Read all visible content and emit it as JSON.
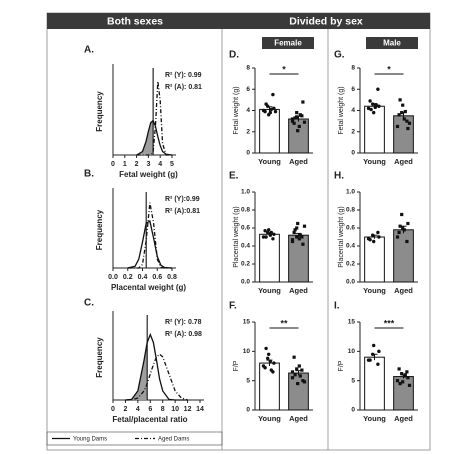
{
  "header": {
    "left": "Both sexes",
    "right": "Divided by sex"
  },
  "groups": {
    "female": "Female",
    "male": "Male"
  },
  "chart_data": [
    {
      "type": "line",
      "panel": "A.",
      "xlabel": "Fetal weight (g)",
      "ylabel": "Frequency",
      "annotations": [
        "R² (Y): 0.99",
        "R² (A): 0.81"
      ],
      "x": [
        2.0,
        2.5,
        2.8,
        3.0,
        3.2,
        3.4,
        3.6,
        3.8,
        4.0,
        4.2,
        4.5,
        5.0
      ],
      "series": [
        {
          "name": "Young Dams",
          "color": "#111111",
          "dash": "solid",
          "fill": "#9e9e9e",
          "values": [
            0.0,
            1.0,
            3.9,
            6.8,
            9.3,
            9.9,
            8.2,
            5.3,
            2.7,
            1.0,
            0.2,
            0.0
          ]
        },
        {
          "name": "Aged Dams",
          "color": "#111111",
          "dash": "dashdot",
          "values": [
            0.0,
            0.0,
            0.0,
            0.0,
            0.0,
            1.0,
            8.4,
            21.2,
            15.6,
            3.3,
            0.0,
            0.0
          ]
        }
      ],
      "vline": 3.4,
      "xlim": [
        0,
        5
      ],
      "xticks": [
        0,
        1,
        2,
        3,
        4,
        5
      ],
      "ylim": [
        0,
        25
      ]
    },
    {
      "type": "line",
      "panel": "B.",
      "xlabel": "Placental weight (g)",
      "ylabel": "Frequency",
      "annotations": [
        "R² (Y):0.99",
        "R² (A):0.81"
      ],
      "x": [
        0.2,
        0.3,
        0.35,
        0.4,
        0.45,
        0.5,
        0.55,
        0.6,
        0.65,
        0.7,
        0.8
      ],
      "series": [
        {
          "name": "Young Dams",
          "color": "#111111",
          "dash": "solid",
          "values": [
            0.0,
            0.4,
            2.0,
            5.8,
            10.0,
            10.5,
            6.7,
            2.6,
            0.6,
            0.1,
            0.0
          ]
        },
        {
          "name": "Aged Dams",
          "color": "#111111",
          "dash": "dashdot",
          "values": [
            0.0,
            0.0,
            0.0,
            0.8,
            6.2,
            14.6,
            10.1,
            2.0,
            0.1,
            0.0,
            0.0
          ]
        }
      ],
      "vline": 0.45,
      "xlim": [
        0,
        0.8
      ],
      "xticks": [
        {
          "value": 0,
          "label": "0.0"
        },
        0.2,
        0.4,
        0.6,
        0.8
      ],
      "ylim": [
        0,
        17
      ]
    },
    {
      "type": "line",
      "panel": "C.",
      "xlabel": "Fetal/placental ratio",
      "ylabel": "Frequency",
      "annotations": [
        "R² (Y): 0.78",
        "R² (A): 0.98"
      ],
      "x": [
        2,
        3,
        4,
        5,
        5.5,
        6,
        6.5,
        7,
        7.5,
        8,
        9,
        10,
        11,
        12
      ],
      "series": [
        {
          "name": "Young Dams",
          "color": "#111111",
          "dash": "solid",
          "fill": "#9e9e9e",
          "values": [
            0.0,
            0.1,
            1.4,
            6.1,
            8.8,
            10.0,
            8.8,
            6.1,
            3.2,
            1.4,
            0.1,
            0.0,
            0.0,
            0.0
          ]
        },
        {
          "name": "Aged Dams",
          "color": "#111111",
          "dash": "dashdot",
          "values": [
            0.0,
            0.0,
            0.3,
            1.4,
            2.5,
            4.0,
            5.4,
            6.6,
            7.0,
            6.6,
            4.0,
            1.4,
            0.3,
            0.0
          ]
        }
      ],
      "vline": 5.5,
      "xlim": [
        0,
        14
      ],
      "xticks": [
        0,
        2,
        4,
        6,
        8,
        10,
        12,
        14
      ],
      "ylim": [
        0,
        13
      ]
    },
    {
      "type": "bar",
      "panel": "D.",
      "ylabel": "Fetal weight (g)",
      "categories": [
        "Young",
        "Aged"
      ],
      "values": [
        4.1,
        3.2
      ],
      "errors": [
        0.25,
        0.25
      ],
      "colors": [
        "#ffffff",
        "#8c8c8c"
      ],
      "markers": [
        "circle",
        "square"
      ],
      "points": [
        [
          4.0,
          4.4,
          3.6,
          5.5,
          4.2,
          3.9,
          4.6,
          3.8,
          4.1,
          3.9
        ],
        [
          3.0,
          3.8,
          2.1,
          3.5,
          4.8,
          2.8,
          3.3,
          2.5,
          3.6,
          2.9,
          3.2,
          3.4
        ]
      ],
      "significance": "*",
      "ylim": [
        0,
        8
      ],
      "yticks": [
        0,
        2,
        4,
        6,
        8
      ]
    },
    {
      "type": "bar",
      "panel": "E.",
      "ylabel": "Placental weight (g)",
      "categories": [
        "Young",
        "Aged"
      ],
      "values": [
        0.53,
        0.52
      ],
      "errors": [
        0.02,
        0.02
      ],
      "colors": [
        "#ffffff",
        "#8c8c8c"
      ],
      "markers": [
        "circle",
        "square"
      ],
      "points": [
        [
          0.5,
          0.55,
          0.58,
          0.48,
          0.53,
          0.57,
          0.5,
          0.52,
          0.55
        ],
        [
          0.45,
          0.6,
          0.65,
          0.5,
          0.42,
          0.55,
          0.58,
          0.48,
          0.52,
          0.62,
          0.47,
          0.5
        ]
      ],
      "ylim": [
        0,
        1
      ],
      "yticks": [
        {
          "value": 0,
          "label": "0.0"
        },
        0.2,
        0.4,
        0.6,
        0.8,
        {
          "value": 1,
          "label": "1.0"
        }
      ]
    },
    {
      "type": "bar",
      "panel": "F.",
      "ylabel": "F/P",
      "categories": [
        "Young",
        "Aged"
      ],
      "values": [
        8.0,
        6.3
      ],
      "errors": [
        0.5,
        0.4
      ],
      "colors": [
        "#ffffff",
        "#8c8c8c"
      ],
      "markers": [
        "circle",
        "square"
      ],
      "points": [
        [
          7.5,
          8.8,
          9.5,
          6.5,
          8.0,
          7.2,
          10.5,
          8.3,
          6.8
        ],
        [
          5.5,
          7.0,
          4.5,
          6.8,
          5.0,
          9.0,
          6.0,
          7.5,
          5.8,
          4.8,
          6.5
        ]
      ],
      "significance": "**",
      "ylim": [
        0,
        15
      ],
      "yticks": [
        0,
        5,
        10,
        15
      ]
    },
    {
      "type": "bar",
      "panel": "G.",
      "ylabel": "Fetal weight (g)",
      "categories": [
        "Young",
        "Aged"
      ],
      "values": [
        4.4,
        3.5
      ],
      "errors": [
        0.25,
        0.3
      ],
      "colors": [
        "#ffffff",
        "#8c8c8c"
      ],
      "markers": [
        "circle",
        "square"
      ],
      "points": [
        [
          4.2,
          4.6,
          3.8,
          6.0,
          4.4,
          4.9,
          4.1,
          4.3,
          4.5
        ],
        [
          2.5,
          3.8,
          4.5,
          3.0,
          2.3,
          3.6,
          5.0,
          3.2,
          3.9,
          2.8
        ]
      ],
      "significance": "*",
      "ylim": [
        0,
        8
      ],
      "yticks": [
        0,
        2,
        4,
        6,
        8
      ]
    },
    {
      "type": "bar",
      "panel": "H.",
      "ylabel": "Placental weight (g)",
      "categories": [
        "Young",
        "Aged"
      ],
      "values": [
        0.5,
        0.58
      ],
      "errors": [
        0.02,
        0.04
      ],
      "colors": [
        "#ffffff",
        "#8c8c8c"
      ],
      "markers": [
        "circle",
        "square"
      ],
      "points": [
        [
          0.48,
          0.52,
          0.45,
          0.55,
          0.5,
          0.47
        ],
        [
          0.5,
          0.75,
          0.6,
          0.45,
          0.65,
          0.55,
          0.62,
          0.58
        ]
      ],
      "ylim": [
        0,
        1
      ],
      "yticks": [
        {
          "value": 0,
          "label": "0.0"
        },
        0.2,
        0.4,
        0.6,
        0.8,
        {
          "value": 1,
          "label": "1.0"
        }
      ]
    },
    {
      "type": "bar",
      "panel": "I.",
      "ylabel": "F/P",
      "categories": [
        "Young",
        "Aged"
      ],
      "values": [
        9.0,
        5.7
      ],
      "errors": [
        0.5,
        0.3
      ],
      "colors": [
        "#ffffff",
        "#8c8c8c"
      ],
      "markers": [
        "circle",
        "square"
      ],
      "points": [
        [
          8.5,
          9.5,
          11,
          7.8,
          10,
          8.5
        ],
        [
          5.0,
          6.2,
          4.8,
          6.5,
          5.5,
          7.0,
          4.5,
          5.8,
          6.0,
          4.2
        ]
      ],
      "significance": "***",
      "ylim": [
        0,
        15
      ],
      "yticks": [
        0,
        5,
        10,
        15
      ]
    }
  ]
}
